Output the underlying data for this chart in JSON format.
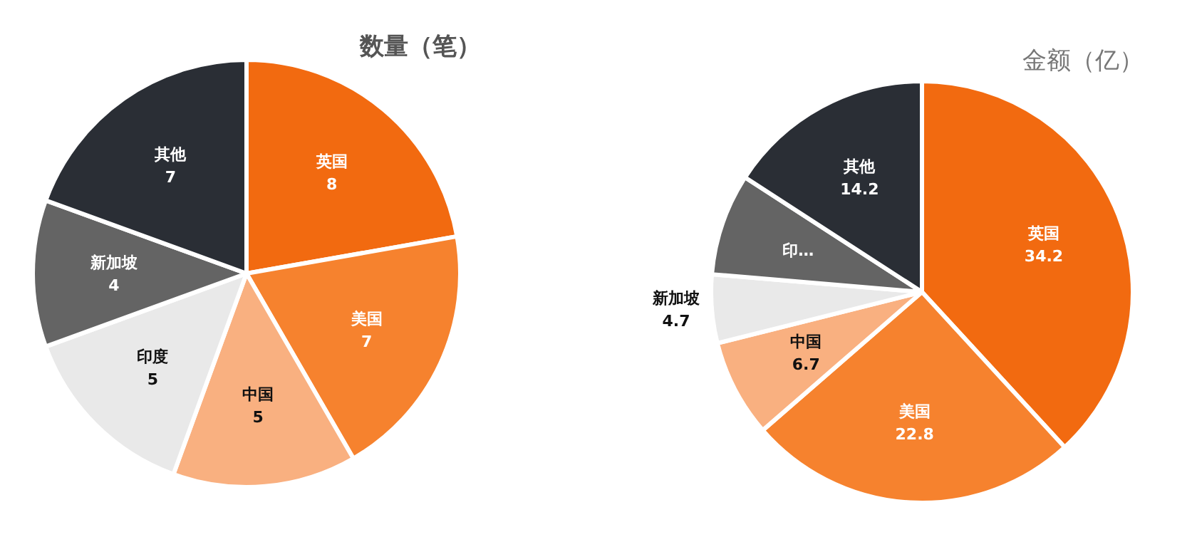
{
  "chart_data": [
    {
      "type": "pie",
      "title": "数量（笔）",
      "categories": [
        "英国",
        "美国",
        "中国",
        "印度",
        "新加坡",
        "其他"
      ],
      "values": [
        8,
        7,
        5,
        5,
        4,
        7
      ],
      "colors": [
        "#f26a10",
        "#f6822e",
        "#f9b080",
        "#e9e9e9",
        "#646464",
        "#2a2e35"
      ],
      "value_labels": [
        "8",
        "7",
        "5",
        "5",
        "4",
        "7"
      ]
    },
    {
      "type": "pie",
      "title": "金额（亿）",
      "categories": [
        "英国",
        "美国",
        "中国",
        "新加坡",
        "印…",
        "其他"
      ],
      "values": [
        34.2,
        22.8,
        6.7,
        4.7,
        7,
        14.2
      ],
      "colors": [
        "#f26a10",
        "#f6822e",
        "#f9b080",
        "#e9e9e9",
        "#646464",
        "#2a2e35"
      ],
      "value_labels": [
        "34.2",
        "22.8",
        "6.7",
        "4.7",
        null,
        "14.2"
      ]
    }
  ]
}
